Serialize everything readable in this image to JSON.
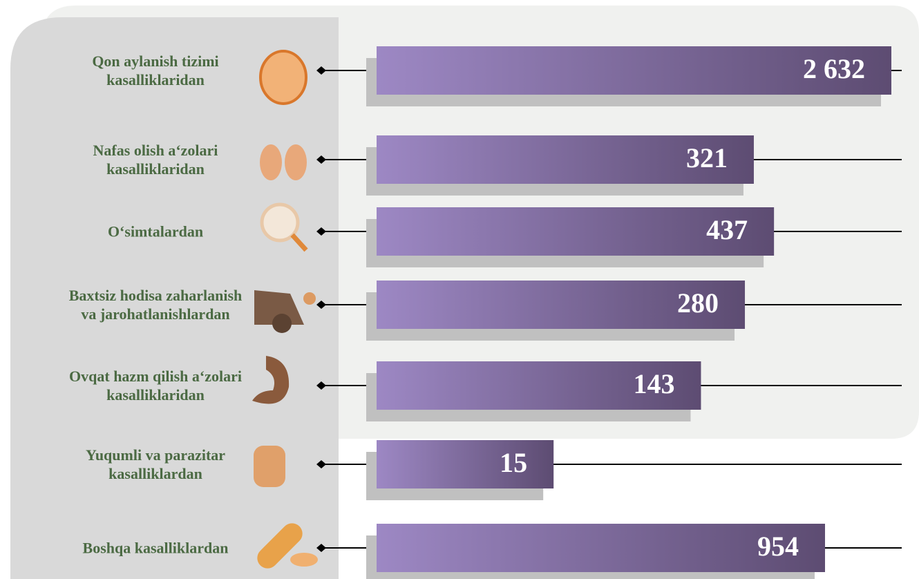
{
  "chart_data": {
    "type": "bar",
    "orientation": "horizontal",
    "log_scale": true,
    "categories": [
      "Qon aylanish tizimi kasalliklaridan",
      "Nafas olish a‘zolari kasalliklaridan",
      "O‘simtalardan",
      "Baxtsiz hodisa zaharlanish va jarohatlanishlardan",
      "Ovqat hazm qilish a‘zolari kasalliklaridan",
      "Yuqumli va parazitar kasalliklardan",
      "Boshqa kasalliklardan"
    ],
    "values": [
      2632,
      321,
      437,
      280,
      143,
      15,
      954
    ],
    "value_labels": [
      "2 632",
      "321",
      "437",
      "280",
      "143",
      "15",
      "954"
    ],
    "color_start": "#9d88c4",
    "color_end": "#5d4c72"
  }
}
